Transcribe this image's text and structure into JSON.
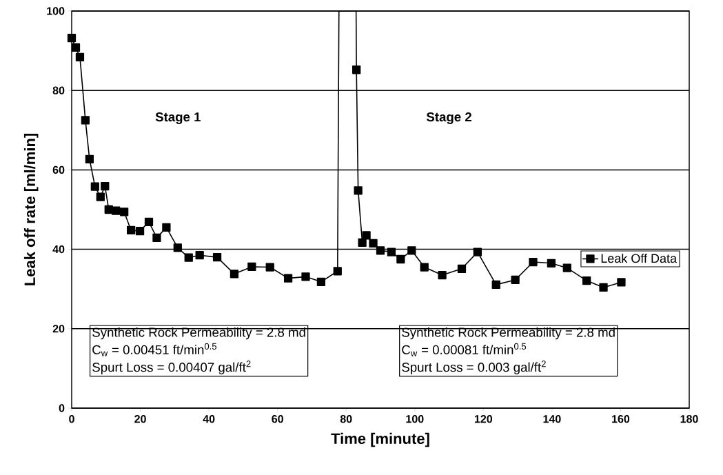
{
  "chart_data": {
    "type": "line",
    "xlabel": "Time [minute]",
    "ylabel": "Leak off rate [ml/min]",
    "xlim": [
      0,
      180
    ],
    "xticks": [
      0,
      20,
      40,
      60,
      80,
      100,
      120,
      140,
      160,
      180
    ],
    "ylim": [
      0,
      100
    ],
    "yticks": [
      0,
      20,
      40,
      60,
      80,
      100
    ],
    "grid": "y",
    "legend": "right",
    "marker": "square",
    "line_style": "solid",
    "series": [
      {
        "name": "Leak Off Data",
        "color": "#000000",
        "x": [
          0,
          1.2,
          2.4,
          4.0,
          5.2,
          6.8,
          8.4,
          9.7,
          10.8,
          12.9,
          15.3,
          17.3,
          19.9,
          22.5,
          24.8,
          27.6,
          30.9,
          34.1,
          37.3,
          42.4,
          47.4,
          52.5,
          57.8,
          63.1,
          68.2,
          72.7,
          77.5,
          80.0,
          83.0,
          83.5,
          84.7,
          85.9,
          87.9,
          90.0,
          93.2,
          95.9,
          99.1,
          102.8,
          108.0,
          113.7,
          118.3,
          123.7,
          129.3,
          134.5,
          139.8,
          144.4,
          150.1,
          155.0,
          160.2
        ],
        "values": [
          93.2,
          90.8,
          88.4,
          72.5,
          62.7,
          55.8,
          53.2,
          55.9,
          50.0,
          49.7,
          49.4,
          44.8,
          44.6,
          46.9,
          42.9,
          45.5,
          40.4,
          37.9,
          38.5,
          38.0,
          33.8,
          35.6,
          35.5,
          32.7,
          33.1,
          31.8,
          34.5,
          null,
          85.2,
          54.8,
          41.7,
          43.5,
          41.5,
          39.7,
          39.3,
          37.5,
          39.7,
          35.5,
          33.5,
          35.1,
          39.3,
          31.1,
          32.3,
          36.8,
          36.5,
          35.3,
          32.1,
          30.4,
          31.7
        ]
      },
      {
        "color": "#000000",
        "marker": "none",
        "x": [
          77.5,
          77.9,
          82.9,
          83.0
        ],
        "values": [
          34.5,
          100,
          100,
          85.2
        ]
      }
    ],
    "annotations": [
      "Stage 1",
      "Stage 2",
      "Synthetic Rock Permeability = 2.8 md",
      "C$_{w}$ = 0.00451 ft/min$^{0.5}$",
      "Spurt Loss = 0.00407 gal/ft$^{2}$",
      "Synthetic Rock Permeability = 2.8 md",
      "C$_{w}$ = 0.00081 ft/min$^{0.5}$",
      "Spurt Loss = 0.003 gal/ft$^{2}$"
    ]
  }
}
